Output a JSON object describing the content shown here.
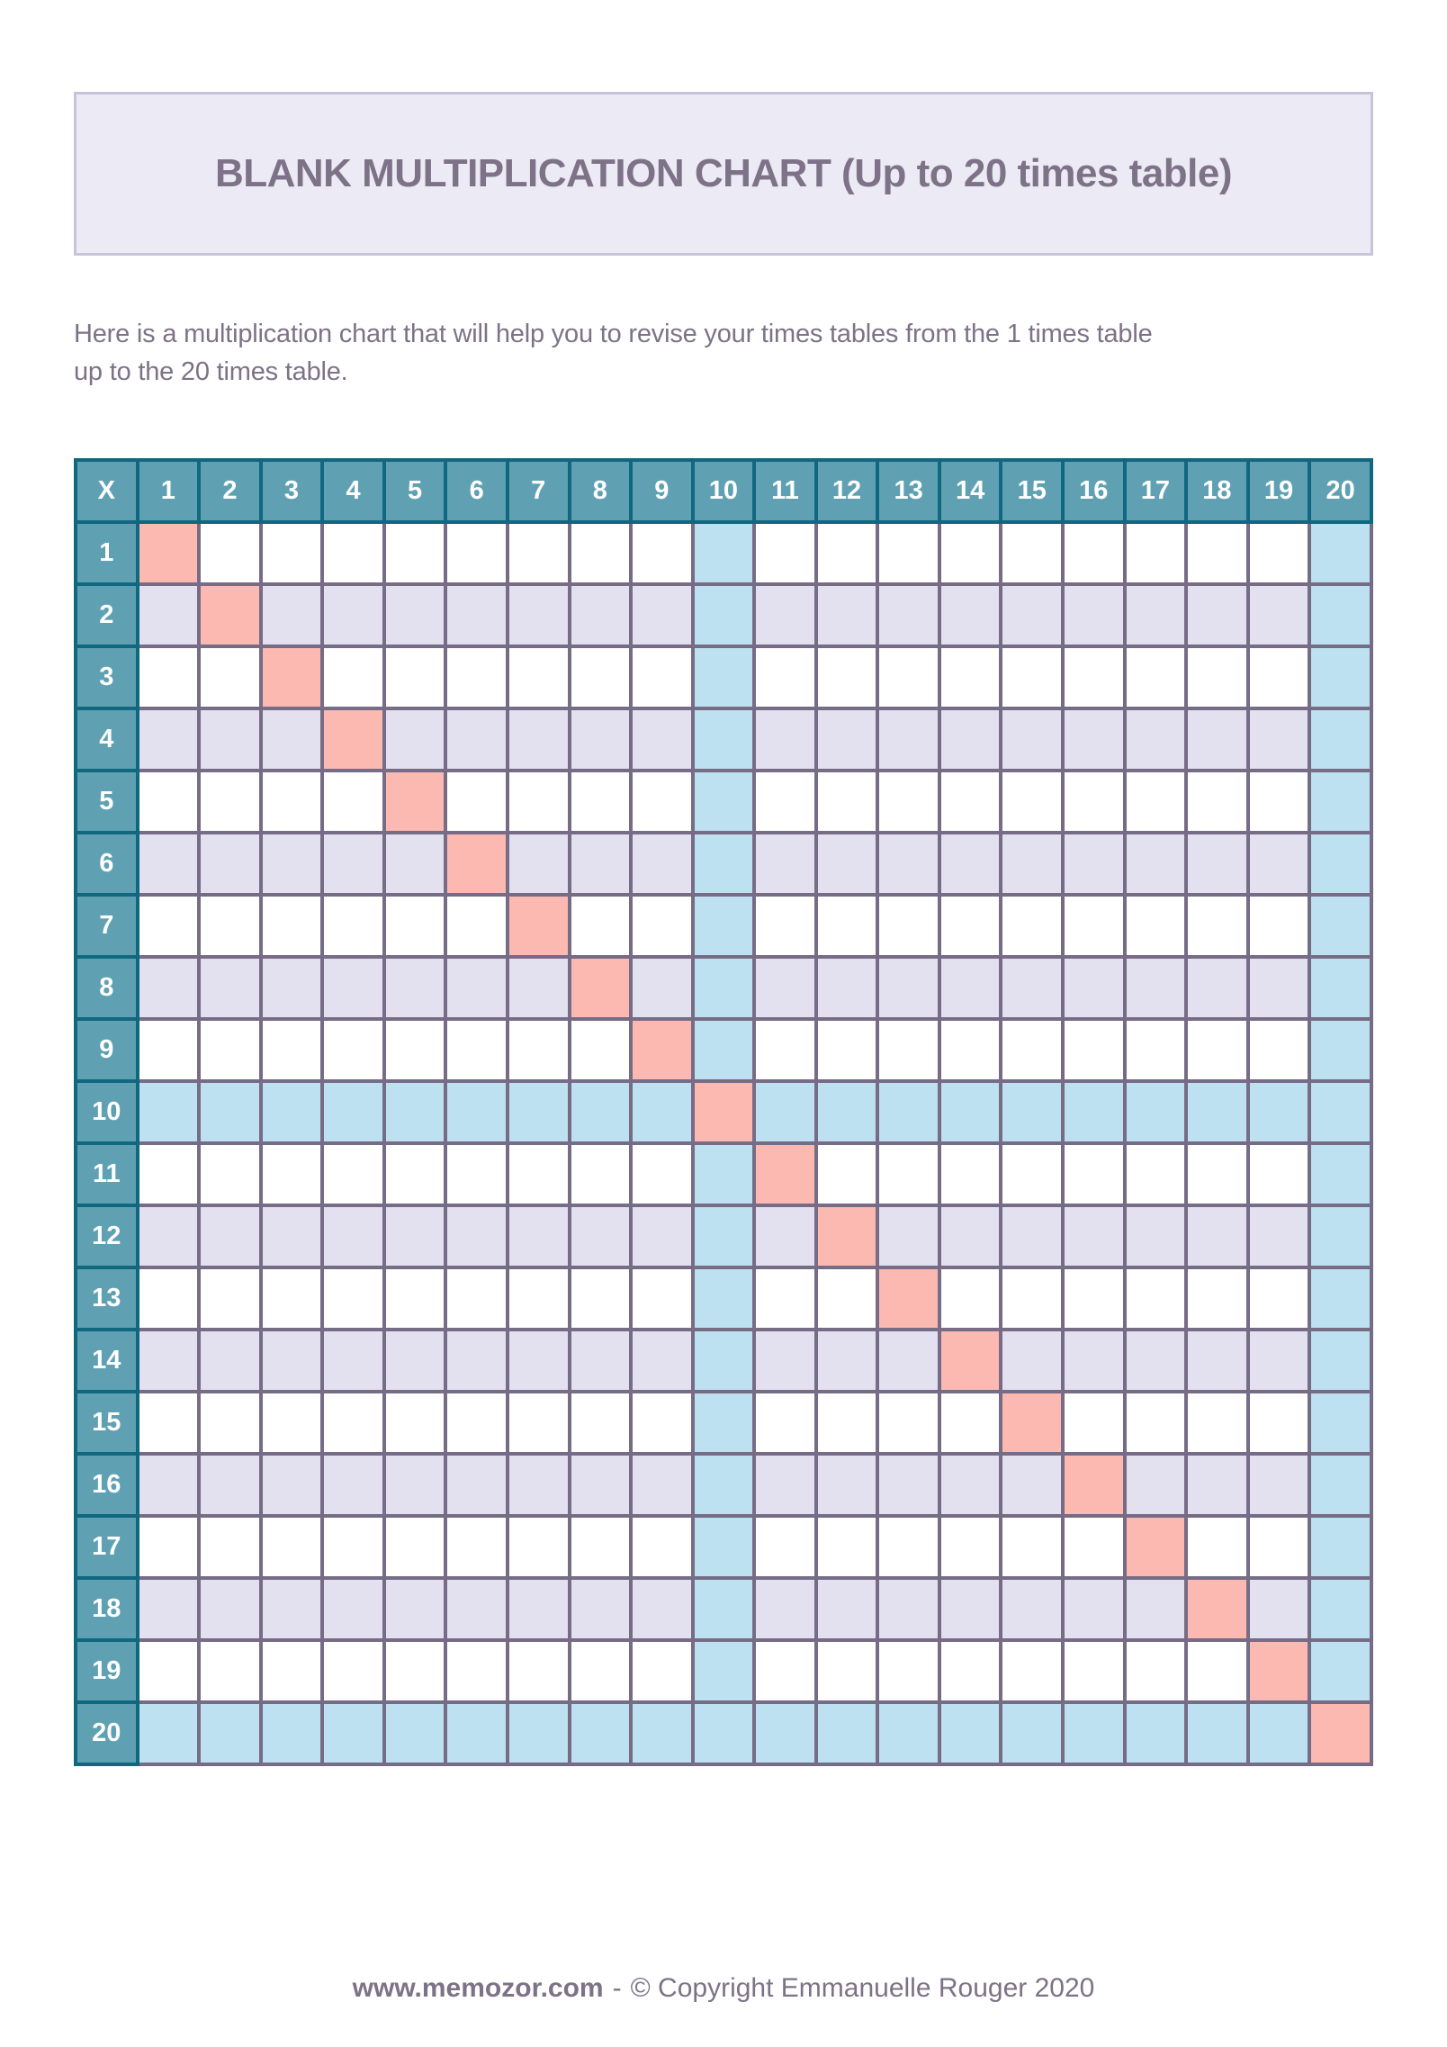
{
  "title_box": {
    "title": "BLANK MULTIPLICATION CHART (Up to 20 times table)"
  },
  "intro": {
    "lines": [
      "Here is a multiplication chart that will help you to revise your times tables from the 1 times table",
      "up to the 20 times table."
    ]
  },
  "table": {
    "corner_label": "X",
    "column_headers": [
      "1",
      "2",
      "3",
      "4",
      "5",
      "6",
      "7",
      "8",
      "9",
      "10",
      "11",
      "12",
      "13",
      "14",
      "15",
      "16",
      "17",
      "18",
      "19",
      "20"
    ],
    "row_headers": [
      "1",
      "2",
      "3",
      "4",
      "5",
      "6",
      "7",
      "8",
      "9",
      "10",
      "11",
      "12",
      "13",
      "14",
      "15",
      "16",
      "17",
      "18",
      "19",
      "20"
    ],
    "cells_are_blank": true,
    "highlights": {
      "diagonal_cells": "row equals column",
      "band_rows": [
        "10",
        "20"
      ],
      "band_cols": [
        "10",
        "20"
      ]
    }
  },
  "footer": {
    "site": "www.memozor.com",
    "separator": "-",
    "copyright": "© Copyright Emmanuelle Rouger 2020"
  },
  "colors": {
    "header_teal": "#5FA1B3",
    "header_border_teal": "#10687F",
    "cell_border_purple": "#776C86",
    "lavender_row": "#E3E0F0",
    "white_row": "#FFFFFF",
    "blue_band": "#BDE1F0",
    "pink_diagonal": "#FBB9B2",
    "muted_purple_text": "#7D7287",
    "title_box_bg": "#ECEAF4",
    "title_box_border": "#C7C4D9"
  }
}
